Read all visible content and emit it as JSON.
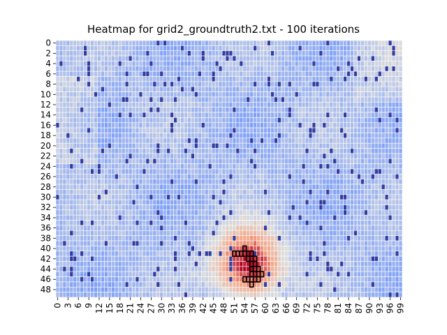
{
  "chart_data": {
    "type": "heatmap",
    "title": "Heatmap for grid2_groundtruth2.txt - 100 iterations",
    "rows": 50,
    "cols": 100,
    "x_ticks": [
      0,
      3,
      6,
      9,
      12,
      15,
      18,
      21,
      24,
      27,
      30,
      33,
      36,
      39,
      42,
      45,
      48,
      51,
      54,
      57,
      60,
      63,
      66,
      69,
      72,
      75,
      78,
      81,
      84,
      87,
      90,
      93,
      96,
      99
    ],
    "y_ticks": [
      0,
      2,
      4,
      6,
      8,
      10,
      12,
      14,
      16,
      18,
      20,
      22,
      24,
      26,
      28,
      30,
      32,
      34,
      36,
      38,
      40,
      42,
      44,
      46,
      48
    ],
    "value_range": [
      0,
      1
    ],
    "colormap": "coolwarm",
    "colorbar": false,
    "grid_lines": "white",
    "hot_spot": {
      "center_col": 55,
      "center_row": 43,
      "peak_value": 0.92
    },
    "obstacle_cells": [],
    "path_cells": [
      [
        41,
        51
      ],
      [
        41,
        52
      ],
      [
        41,
        53
      ],
      [
        41,
        54
      ],
      [
        41,
        55
      ],
      [
        41,
        56
      ],
      [
        40,
        54
      ],
      [
        42,
        55
      ],
      [
        42,
        56
      ],
      [
        42,
        57
      ],
      [
        43,
        56
      ],
      [
        43,
        57
      ],
      [
        44,
        56
      ],
      [
        44,
        57
      ],
      [
        44,
        58
      ],
      [
        45,
        56
      ],
      [
        45,
        57
      ],
      [
        45,
        58
      ],
      [
        45,
        59
      ],
      [
        46,
        54
      ],
      [
        46,
        55
      ],
      [
        46,
        56
      ],
      [
        46,
        57
      ],
      [
        46,
        58
      ],
      [
        47,
        56
      ]
    ]
  }
}
